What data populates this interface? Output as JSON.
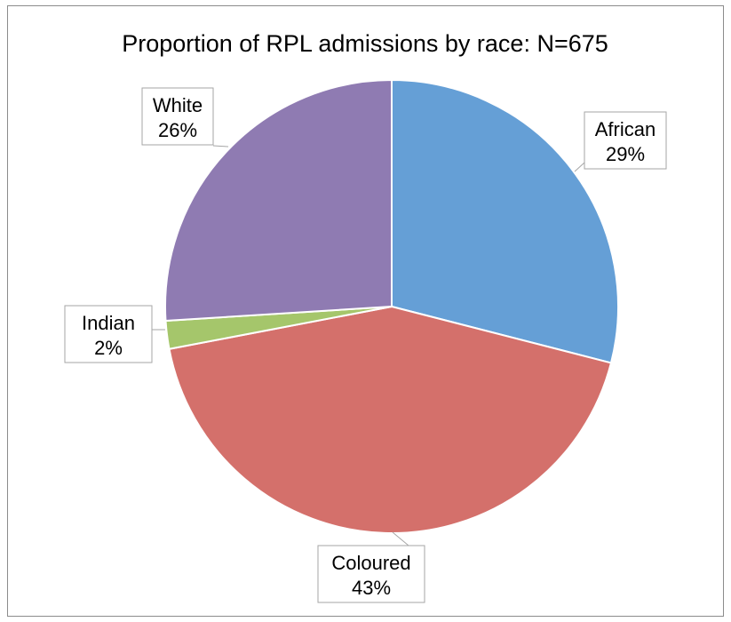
{
  "chart_data": {
    "type": "pie",
    "title": "Proportion of RPL admissions by race: N=675",
    "slices": [
      {
        "name": "African",
        "percent_label": "29%",
        "value": 29,
        "color": "#659fd6"
      },
      {
        "name": "Coloured",
        "percent_label": "43%",
        "value": 43,
        "color": "#d4706b"
      },
      {
        "name": "Indian",
        "percent_label": "2%",
        "value": 2,
        "color": "#a5c66b"
      },
      {
        "name": "White",
        "percent_label": "26%",
        "value": 26,
        "color": "#8f7bb2"
      }
    ]
  }
}
